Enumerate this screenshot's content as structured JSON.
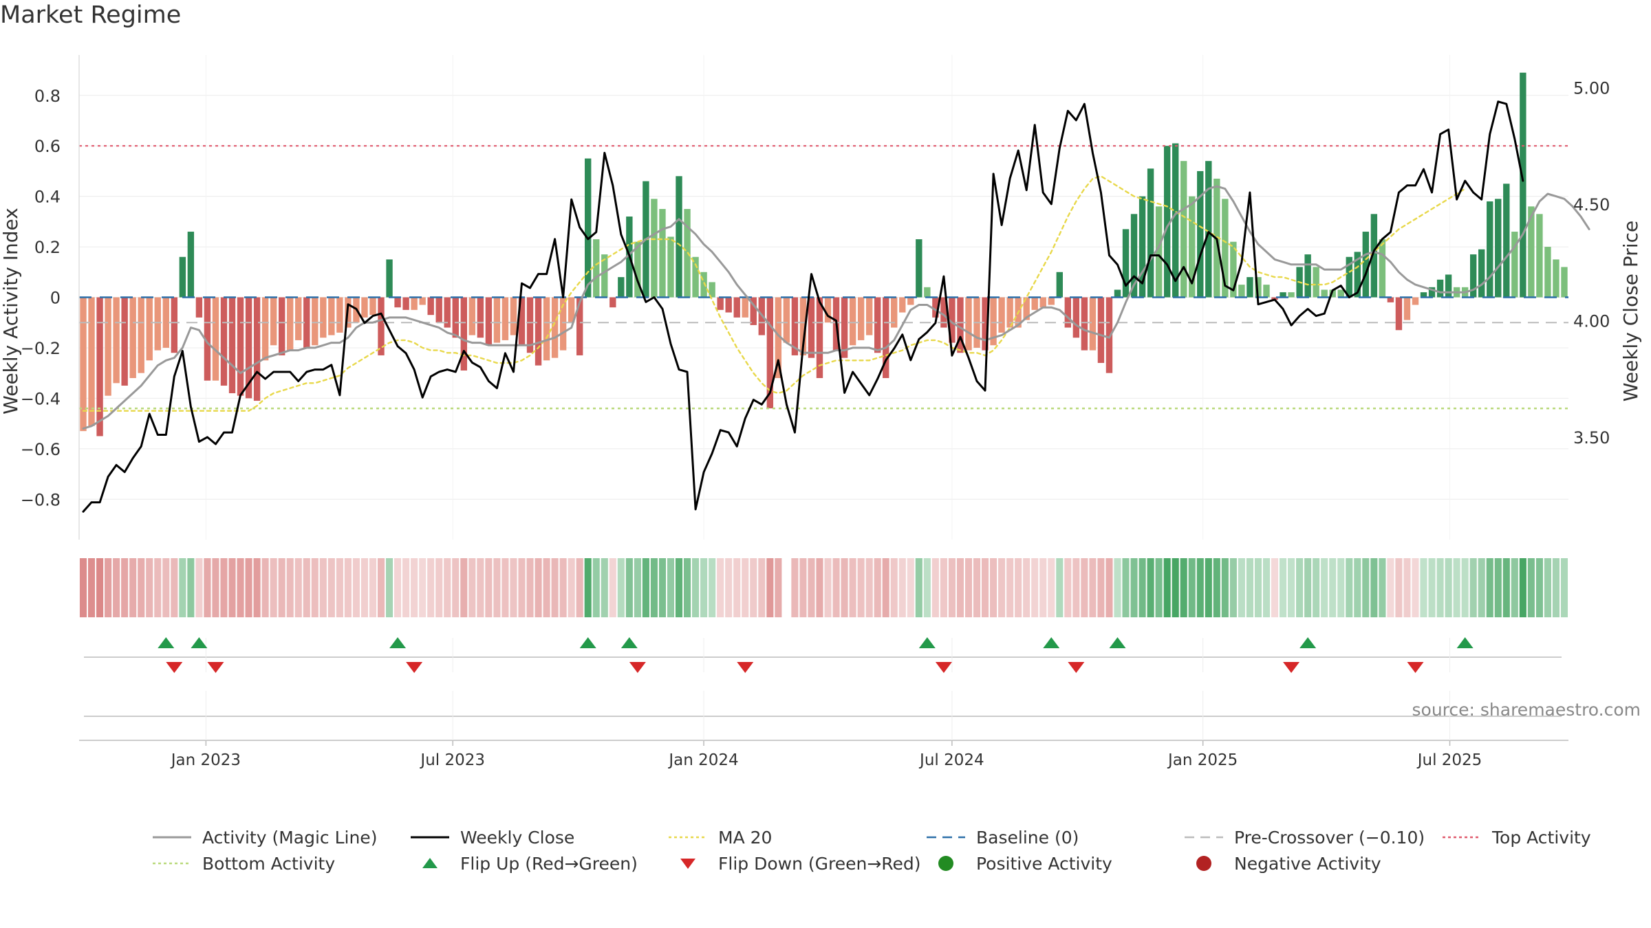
{
  "title": "Market Regime",
  "source": "source: sharemaestro.com",
  "colors": {
    "activity_line": "#999999",
    "close_line": "#000000",
    "ma20": "#e8d84a",
    "baseline": "#2b6fa8",
    "precross": "#bbbbbb",
    "top": "#e05a6d",
    "bottom": "#b9d97a",
    "green_dark": "#2e8b57",
    "green_light": "#7cbf7c",
    "red_dark": "#cd5c5c",
    "red_light": "#e9967a",
    "flip_up": "#23994a",
    "flip_down": "#d62728",
    "pos_dot": "#228b22",
    "neg_dot": "#b22222"
  },
  "chart_data": {
    "type": "bar",
    "title": "Market Regime",
    "xlabel": "",
    "ylabel": "Weekly Activity Index",
    "y2label": "Weekly Close Price",
    "ylim": [
      -0.96,
      0.96
    ],
    "y2lim": [
      3.06,
      5.14
    ],
    "yticks": [
      0.8,
      0.6,
      0.4,
      0.2,
      0,
      -0.2,
      -0.4,
      -0.6,
      -0.8
    ],
    "ytick_labels": [
      "0.8",
      "0.6",
      "0.4",
      "0.2",
      "0",
      "−0.2",
      "−0.4",
      "−0.6",
      "−0.8"
    ],
    "y2ticks": [
      5.0,
      4.5,
      4.0,
      3.5
    ],
    "y2tick_labels": [
      "5.00",
      "4.50",
      "4.00",
      "3.50"
    ],
    "x_start": "2022-09-30",
    "x_end": "2025-09-26",
    "xticks": [
      "2023-01-01",
      "2023-07-01",
      "2024-01-01",
      "2024-07-01",
      "2025-01-01",
      "2025-07-01"
    ],
    "xtick_labels": [
      "Jan 2023",
      "Jul 2023",
      "Jan 2024",
      "Jul 2024",
      "Jan 2025",
      "Jul 2025"
    ],
    "top_level": 0.6,
    "bottom_level": -0.44,
    "baseline_level": 0,
    "precross_level": -0.1,
    "activity": [
      -0.53,
      -0.51,
      -0.55,
      -0.39,
      -0.34,
      -0.35,
      -0.32,
      -0.3,
      -0.25,
      -0.21,
      -0.2,
      -0.22,
      0.16,
      0.26,
      -0.08,
      -0.33,
      -0.33,
      -0.35,
      -0.38,
      -0.39,
      -0.4,
      -0.41,
      -0.25,
      -0.19,
      -0.23,
      -0.21,
      -0.17,
      -0.2,
      -0.19,
      -0.16,
      -0.15,
      -0.14,
      -0.12,
      -0.1,
      -0.08,
      -0.07,
      -0.23,
      0.15,
      -0.04,
      -0.05,
      -0.05,
      -0.03,
      -0.07,
      -0.1,
      -0.12,
      -0.16,
      -0.29,
      -0.15,
      -0.16,
      -0.19,
      -0.18,
      -0.17,
      -0.15,
      -0.19,
      -0.22,
      -0.27,
      -0.25,
      -0.24,
      -0.21,
      -0.1,
      -0.23,
      0.55,
      0.23,
      0.17,
      -0.04,
      0.08,
      0.32,
      0.22,
      0.46,
      0.39,
      0.35,
      0.24,
      0.48,
      0.35,
      0.16,
      0.1,
      0.06,
      -0.05,
      -0.06,
      -0.08,
      -0.08,
      -0.11,
      -0.15,
      -0.44,
      -0.32,
      -0.18,
      -0.23,
      -0.23,
      -0.24,
      -0.32,
      -0.1,
      -0.21,
      -0.24,
      -0.19,
      -0.17,
      -0.15,
      -0.22,
      -0.32,
      -0.12,
      -0.06,
      -0.03,
      0.23,
      0.04,
      -0.08,
      -0.12,
      -0.18,
      -0.22,
      -0.21,
      -0.2,
      -0.21,
      -0.19,
      -0.14,
      -0.12,
      -0.12,
      -0.09,
      -0.05,
      -0.04,
      -0.03,
      0.1,
      -0.12,
      -0.16,
      -0.21,
      -0.21,
      -0.26,
      -0.3,
      0.03,
      0.27,
      0.33,
      0.4,
      0.51,
      0.36,
      0.6,
      0.61,
      0.54,
      0.4,
      0.5,
      0.54,
      0.47,
      0.39,
      0.22,
      0.05,
      0.08,
      0.08,
      0.05,
      -0.01,
      0.02,
      0.02,
      0.12,
      0.17,
      0.12,
      0.03,
      0.03,
      0.03,
      0.16,
      0.18,
      0.26,
      0.33,
      0.23,
      -0.02,
      -0.13,
      -0.09,
      -0.03,
      0.02,
      0.04,
      0.07,
      0.09,
      0.04,
      0.04,
      0.17,
      0.19,
      0.38,
      0.39,
      0.45,
      0.26,
      0.89,
      0.36,
      0.33,
      0.2,
      0.15,
      0.12
    ],
    "close": [
      3.18,
      3.22,
      3.22,
      3.33,
      3.38,
      3.35,
      3.41,
      3.46,
      3.6,
      3.51,
      3.51,
      3.76,
      3.87,
      3.63,
      3.48,
      3.5,
      3.47,
      3.52,
      3.52,
      3.68,
      3.73,
      3.78,
      3.75,
      3.78,
      3.78,
      3.78,
      3.74,
      3.78,
      3.79,
      3.79,
      3.81,
      3.68,
      4.07,
      4.05,
      3.99,
      4.02,
      4.03,
      3.96,
      3.89,
      3.86,
      3.79,
      3.67,
      3.76,
      3.78,
      3.79,
      3.78,
      3.87,
      3.82,
      3.8,
      3.74,
      3.71,
      3.86,
      3.78,
      4.16,
      4.14,
      4.2,
      4.2,
      4.35,
      4.1,
      4.52,
      4.4,
      4.35,
      4.38,
      4.72,
      4.58,
      4.37,
      4.28,
      4.17,
      4.08,
      4.1,
      4.05,
      3.9,
      3.79,
      3.78,
      3.19,
      3.35,
      3.43,
      3.53,
      3.52,
      3.46,
      3.58,
      3.66,
      3.64,
      3.69,
      3.83,
      3.64,
      3.52,
      3.89,
      4.2,
      4.08,
      4.02,
      4.0,
      3.69,
      3.78,
      3.73,
      3.68,
      3.75,
      3.83,
      3.88,
      3.94,
      3.83,
      3.92,
      3.95,
      3.99,
      4.19,
      3.85,
      3.93,
      3.84,
      3.74,
      3.7,
      4.63,
      4.41,
      4.61,
      4.73,
      4.56,
      4.84,
      4.55,
      4.5,
      4.74,
      4.9,
      4.86,
      4.93,
      4.72,
      4.55,
      4.28,
      4.24,
      4.15,
      4.19,
      4.16,
      4.28,
      4.28,
      4.24,
      4.17,
      4.23,
      4.16,
      4.28,
      4.38,
      4.35,
      4.15,
      4.13,
      4.25,
      4.55,
      4.07,
      4.08,
      4.09,
      4.05,
      3.98,
      4.02,
      4.05,
      4.02,
      4.03,
      4.13,
      4.15,
      4.1,
      4.12,
      4.2,
      4.3,
      4.35,
      4.38,
      4.55,
      4.58,
      4.58,
      4.65,
      4.55,
      4.8,
      4.82,
      4.52,
      4.6,
      4.55,
      4.52,
      4.8,
      4.94,
      4.93,
      4.78,
      4.6
    ],
    "series": [
      {
        "name": "Activity (Magic Line)",
        "values": [
          -0.52,
          -0.51,
          -0.49,
          -0.47,
          -0.44,
          -0.41,
          -0.38,
          -0.35,
          -0.31,
          -0.27,
          -0.25,
          -0.24,
          -0.2,
          -0.12,
          -0.13,
          -0.18,
          -0.21,
          -0.24,
          -0.27,
          -0.3,
          -0.28,
          -0.26,
          -0.24,
          -0.23,
          -0.22,
          -0.21,
          -0.21,
          -0.2,
          -0.2,
          -0.19,
          -0.18,
          -0.18,
          -0.16,
          -0.12,
          -0.1,
          -0.1,
          -0.09,
          -0.08,
          -0.08,
          -0.08,
          -0.09,
          -0.1,
          -0.11,
          -0.12,
          -0.14,
          -0.15,
          -0.17,
          -0.18,
          -0.18,
          -0.19,
          -0.19,
          -0.19,
          -0.19,
          -0.19,
          -0.19,
          -0.18,
          -0.17,
          -0.16,
          -0.14,
          -0.12,
          -0.02,
          0.05,
          0.08,
          0.1,
          0.12,
          0.14,
          0.17,
          0.2,
          0.23,
          0.25,
          0.27,
          0.28,
          0.31,
          0.28,
          0.25,
          0.21,
          0.18,
          0.14,
          0.1,
          0.05,
          0.01,
          -0.03,
          -0.07,
          -0.11,
          -0.15,
          -0.18,
          -0.2,
          -0.22,
          -0.22,
          -0.22,
          -0.22,
          -0.21,
          -0.21,
          -0.2,
          -0.2,
          -0.2,
          -0.21,
          -0.2,
          -0.17,
          -0.11,
          -0.05,
          -0.03,
          -0.03,
          -0.05,
          -0.07,
          -0.1,
          -0.12,
          -0.14,
          -0.16,
          -0.17,
          -0.16,
          -0.15,
          -0.13,
          -0.11,
          -0.08,
          -0.06,
          -0.04,
          -0.04,
          -0.05,
          -0.08,
          -0.11,
          -0.13,
          -0.14,
          -0.15,
          -0.16,
          -0.1,
          -0.02,
          0.05,
          0.1,
          0.15,
          0.2,
          0.28,
          0.33,
          0.35,
          0.37,
          0.4,
          0.43,
          0.44,
          0.43,
          0.38,
          0.32,
          0.26,
          0.21,
          0.18,
          0.15,
          0.14,
          0.13,
          0.13,
          0.13,
          0.13,
          0.11,
          0.11,
          0.11,
          0.13,
          0.15,
          0.17,
          0.18,
          0.17,
          0.14,
          0.1,
          0.07,
          0.05,
          0.04,
          0.03,
          0.02,
          0.02,
          0.02,
          0.02,
          0.03,
          0.05,
          0.08,
          0.12,
          0.16,
          0.2,
          0.25,
          0.32,
          0.38,
          0.41,
          0.4,
          0.39,
          0.36,
          0.32,
          0.27
        ]
      },
      {
        "name": "Weekly Close",
        "values": "close"
      },
      {
        "name": "MA 20",
        "values": [
          -0.45,
          -0.45,
          -0.45,
          -0.45,
          -0.45,
          -0.45,
          -0.45,
          -0.45,
          -0.45,
          -0.45,
          -0.45,
          -0.45,
          -0.45,
          -0.45,
          -0.45,
          -0.45,
          -0.45,
          -0.45,
          -0.45,
          -0.45,
          -0.45,
          -0.43,
          -0.4,
          -0.38,
          -0.37,
          -0.36,
          -0.35,
          -0.34,
          -0.34,
          -0.33,
          -0.32,
          -0.31,
          -0.28,
          -0.26,
          -0.24,
          -0.22,
          -0.2,
          -0.18,
          -0.17,
          -0.17,
          -0.18,
          -0.2,
          -0.21,
          -0.21,
          -0.22,
          -0.22,
          -0.23,
          -0.23,
          -0.24,
          -0.25,
          -0.26,
          -0.26,
          -0.26,
          -0.25,
          -0.23,
          -0.2,
          -0.16,
          -0.1,
          -0.03,
          0.02,
          0.06,
          0.1,
          0.13,
          0.15,
          0.17,
          0.19,
          0.21,
          0.22,
          0.23,
          0.23,
          0.23,
          0.23,
          0.21,
          0.18,
          0.13,
          0.06,
          -0.01,
          -0.08,
          -0.14,
          -0.2,
          -0.25,
          -0.3,
          -0.34,
          -0.37,
          -0.38,
          -0.37,
          -0.34,
          -0.31,
          -0.29,
          -0.27,
          -0.26,
          -0.25,
          -0.25,
          -0.25,
          -0.25,
          -0.25,
          -0.24,
          -0.23,
          -0.22,
          -0.21,
          -0.19,
          -0.18,
          -0.17,
          -0.17,
          -0.18,
          -0.2,
          -0.21,
          -0.22,
          -0.22,
          -0.23,
          -0.21,
          -0.17,
          -0.12,
          -0.06,
          0.0,
          0.06,
          0.12,
          0.18,
          0.25,
          0.32,
          0.38,
          0.43,
          0.47,
          0.48,
          0.46,
          0.44,
          0.42,
          0.4,
          0.39,
          0.38,
          0.37,
          0.36,
          0.34,
          0.32,
          0.3,
          0.28,
          0.26,
          0.24,
          0.22,
          0.2,
          0.16,
          0.12,
          0.1,
          0.09,
          0.08,
          0.08,
          0.07,
          0.06,
          0.05,
          0.05,
          0.05,
          0.06,
          0.08,
          0.1,
          0.12,
          0.15,
          0.18,
          0.21,
          0.24,
          0.27,
          0.29,
          0.31,
          0.33,
          0.35,
          0.37,
          0.39,
          0.41,
          0.43
        ]
      },
      {
        "name": "Baseline (0)",
        "values": "baseline_level"
      },
      {
        "name": "Pre-Crossover (−0.10)",
        "values": "precross_level"
      },
      {
        "name": "Top Activity",
        "values": "top_level"
      },
      {
        "name": "Bottom Activity",
        "values": "bottom_level"
      }
    ],
    "flip_up_weeks": [
      10,
      14,
      38,
      61,
      66,
      102,
      117,
      125,
      148,
      167
    ],
    "flip_down_weeks": [
      11,
      16,
      40,
      67,
      80,
      104,
      120,
      146,
      161
    ]
  },
  "legend": [
    {
      "label": "Activity (Magic Line)",
      "kind": "line",
      "color": "#999999"
    },
    {
      "label": "Weekly Close",
      "kind": "line",
      "color": "#000000"
    },
    {
      "label": "MA 20",
      "kind": "dotted",
      "color": "#e8d84a"
    },
    {
      "label": "Baseline (0)",
      "kind": "dashed",
      "color": "#2b6fa8"
    },
    {
      "label": "Pre-Crossover (−0.10)",
      "kind": "dashed",
      "color": "#bbbbbb"
    },
    {
      "label": "Top Activity",
      "kind": "dotted",
      "color": "#e05a6d"
    },
    {
      "label": "Bottom Activity",
      "kind": "dotted",
      "color": "#b9d97a"
    },
    {
      "label": "Flip Up (Red→Green)",
      "kind": "tri-up",
      "color": "#23994a"
    },
    {
      "label": "Flip Down (Green→Red)",
      "kind": "tri-down",
      "color": "#d62728"
    },
    {
      "label": "Positive Activity",
      "kind": "dot",
      "color": "#228b22"
    },
    {
      "label": "Negative Activity",
      "kind": "dot",
      "color": "#b22222"
    }
  ]
}
